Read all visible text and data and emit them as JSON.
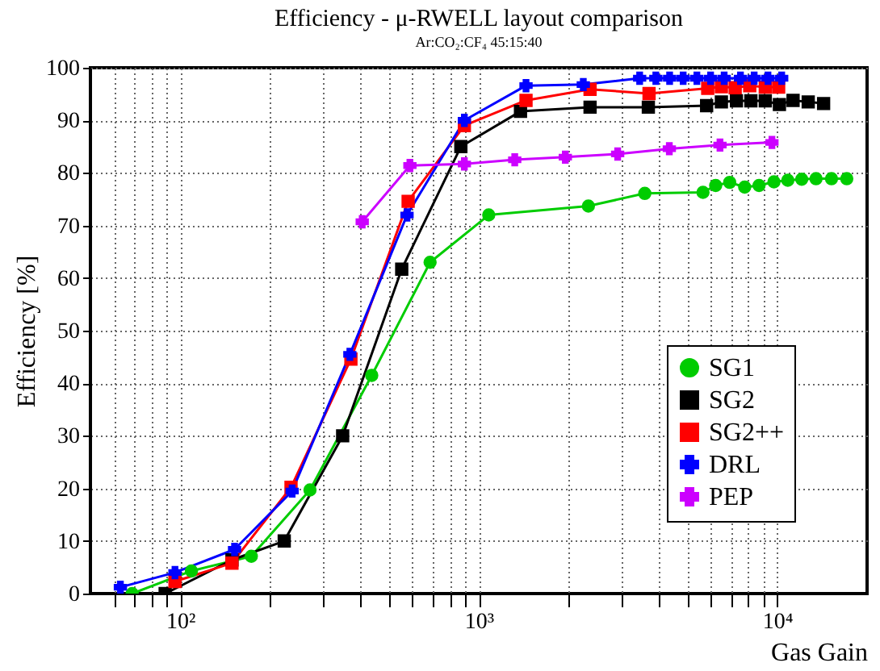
{
  "chart_data": {
    "type": "line",
    "title": "Efficiency - μ-RWELL layout comparison",
    "subtitle": "Ar:CO₂:CF₄ 45:15:40",
    "xlabel": "Gas Gain",
    "ylabel": "Efficiency [%]",
    "log": "x",
    "grid": true,
    "legend": "bottom right",
    "xlim": [
      50,
      20000
    ],
    "xticks": [
      {
        "value": 60,
        "label": null
      },
      {
        "value": 70,
        "label": null
      },
      {
        "value": 80,
        "label": null
      },
      {
        "value": 90,
        "label": null
      },
      {
        "value": 100,
        "label": "10²"
      },
      {
        "value": 200,
        "label": null
      },
      {
        "value": 300,
        "label": null
      },
      {
        "value": 400,
        "label": null
      },
      {
        "value": 500,
        "label": null
      },
      {
        "value": 600,
        "label": null
      },
      {
        "value": 700,
        "label": null
      },
      {
        "value": 800,
        "label": null
      },
      {
        "value": 900,
        "label": null
      },
      {
        "value": 1000,
        "label": "10³"
      },
      {
        "value": 2000,
        "label": null
      },
      {
        "value": 3000,
        "label": null
      },
      {
        "value": 4000,
        "label": null
      },
      {
        "value": 5000,
        "label": null
      },
      {
        "value": 6000,
        "label": null
      },
      {
        "value": 7000,
        "label": null
      },
      {
        "value": 8000,
        "label": null
      },
      {
        "value": 9000,
        "label": null
      },
      {
        "value": 10000,
        "label": "10⁴"
      }
    ],
    "ylim": [
      0,
      100
    ],
    "yticks": [
      0,
      10,
      20,
      30,
      40,
      50,
      60,
      70,
      80,
      90,
      100
    ],
    "series": [
      {
        "name": "SG1",
        "color": "#00cc00",
        "marker": "circle",
        "x": [
          69,
          109,
          173,
          272,
          438,
          687,
          1080,
          2330,
          3600,
          5640,
          6220,
          6930,
          7780,
          8690,
          9750,
          10850,
          12080,
          13490,
          15200,
          17100
        ],
        "values": [
          0,
          4.3,
          7.1,
          19.7,
          41.5,
          63,
          72,
          73.7,
          76.1,
          76.3,
          77.6,
          78.2,
          77.3,
          77.6,
          78.3,
          78.6,
          78.8,
          78.9,
          78.9,
          78.9
        ]
      },
      {
        "name": "SG2",
        "color": "#000000",
        "marker": "square",
        "x": [
          89,
          149,
          223,
          350,
          552,
          871,
          1380,
          2360,
          3700,
          5800,
          6500,
          7300,
          8160,
          9120,
          10170,
          11300,
          12700,
          14300
        ],
        "values": [
          0,
          6.4,
          10,
          30,
          61.7,
          85,
          91.7,
          92.5,
          92.5,
          92.8,
          93.5,
          93.7,
          93.7,
          93.7,
          93,
          93.8,
          93.5,
          93.2
        ]
      },
      {
        "name": "SG2++",
        "color": "#ff0000",
        "marker": "square",
        "x": [
          96,
          149,
          235,
          373,
          580,
          895,
          1440,
          2360,
          3720,
          5850,
          6500,
          7230,
          8090,
          9120,
          10110
        ],
        "values": [
          2.3,
          5.8,
          20.2,
          44.6,
          74.6,
          89,
          93.8,
          95.9,
          95.1,
          96.1,
          96.4,
          96.2,
          96.6,
          96.3,
          96.3
        ]
      },
      {
        "name": "DRL",
        "color": "#0000ff",
        "marker": "cross",
        "x": [
          63,
          96,
          152,
          237,
          370,
          575,
          895,
          1440,
          2240,
          3460,
          3920,
          4360,
          4840,
          5380,
          5980,
          6640,
          7530,
          8370,
          9310,
          10350
        ],
        "values": [
          1.2,
          4,
          8.4,
          19.5,
          45.5,
          72,
          90,
          96.6,
          96.8,
          98,
          98,
          98,
          98,
          98,
          98,
          98,
          98,
          98,
          98,
          98
        ]
      },
      {
        "name": "PEP",
        "color": "#cc00ff",
        "marker": "cross",
        "x": [
          407,
          588,
          895,
          1320,
          1950,
          2920,
          4350,
          6430,
          9600
        ],
        "values": [
          70.7,
          81.4,
          81.7,
          82.5,
          83,
          83.6,
          84.6,
          85.3,
          85.8
        ]
      }
    ]
  }
}
